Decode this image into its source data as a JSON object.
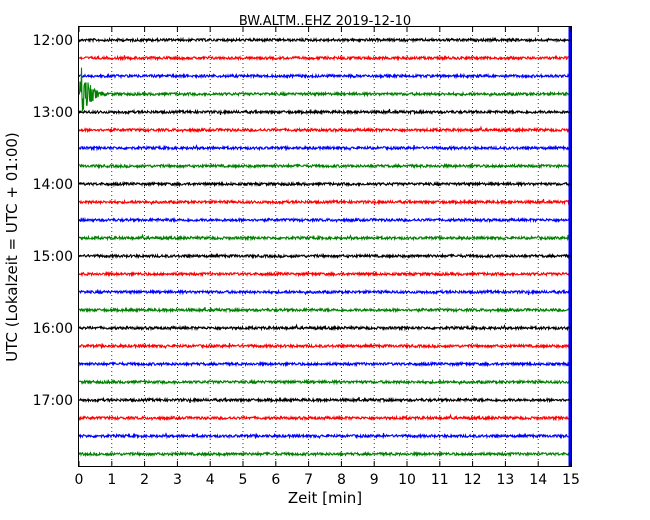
{
  "chart_data": {
    "type": "line",
    "title": "BW.ALTM..EHZ 2019-12-10",
    "xlabel": "Zeit  [min]",
    "ylabel": "UTC (Lokalzeit = UTC + 01:00)",
    "xlim": [
      0,
      15
    ],
    "x_ticks": [
      "0",
      "1",
      "2",
      "3",
      "4",
      "5",
      "6",
      "7",
      "8",
      "9",
      "10",
      "11",
      "12",
      "13",
      "14",
      "15"
    ],
    "y_ticks": [
      "12:00",
      "13:00",
      "14:00",
      "15:00",
      "16:00",
      "17:00"
    ],
    "trace_interval_min": 15,
    "start_time": "12:00",
    "trace_count": 24,
    "trace_colors": [
      "#000000",
      "#ff0000",
      "#0000ff",
      "#008000"
    ],
    "grid": "vertical dotted",
    "event": {
      "trace_start": "12:45",
      "minute_range": [
        0,
        0.6
      ],
      "color": "#008000"
    }
  }
}
